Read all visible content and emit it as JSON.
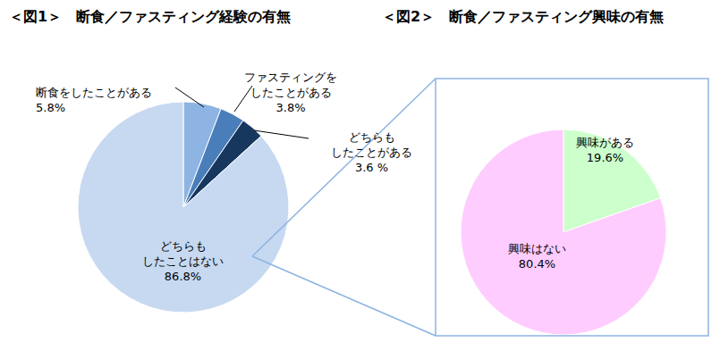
{
  "chart_data": [
    {
      "type": "pie",
      "title": "＜図1＞　断食／ファスティング経験の有無",
      "categories": [
        "断食をしたことがある",
        "ファスティングを\nしたことがある",
        "どちらも\nしたことがある",
        "どちらも\nしたことはない"
      ],
      "values": [
        5.8,
        3.8,
        3.6,
        86.8
      ],
      "value_labels": [
        "5.8%",
        "3.8%",
        "3.6 %",
        "86.8%"
      ],
      "colors": [
        "#8db4e2",
        "#4a7ebb",
        "#17375e",
        "#c6d9f1"
      ]
    },
    {
      "type": "pie",
      "title": "＜図2＞　断食／ファスティング興味の有無",
      "categories": [
        "興味がある",
        "興味はない"
      ],
      "values": [
        19.6,
        80.4
      ],
      "value_labels": [
        "19.6%",
        "80.4%"
      ],
      "colors": [
        "#ccffcc",
        "#ffccff"
      ]
    }
  ]
}
